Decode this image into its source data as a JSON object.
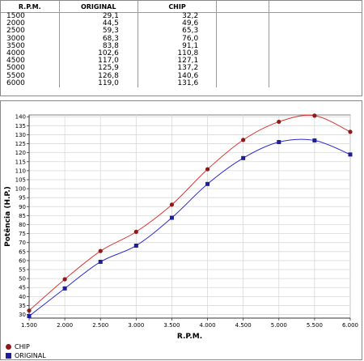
{
  "table": {
    "headers": [
      "R.P.M.",
      "ORIGINAL",
      "CHIP",
      "",
      ""
    ],
    "rows": [
      [
        "1500",
        "29,1",
        "32,2"
      ],
      [
        "2000",
        "44,5",
        "49,6"
      ],
      [
        "2500",
        "59,3",
        "65,3"
      ],
      [
        "3000",
        "68,3",
        "76,0"
      ],
      [
        "3500",
        "83,8",
        "91,1"
      ],
      [
        "4000",
        "102,6",
        "110,8"
      ],
      [
        "4500",
        "117,0",
        "127,1"
      ],
      [
        "5000",
        "125,9",
        "137,2"
      ],
      [
        "5500",
        "126,8",
        "140,6"
      ],
      [
        "6000",
        "119,0",
        "131,6"
      ]
    ]
  },
  "chart_data": {
    "type": "line",
    "xlabel": "R.P.M.",
    "ylabel": "Potência (H.P.)",
    "x": [
      1500,
      2000,
      2500,
      3000,
      3500,
      4000,
      4500,
      5000,
      5500,
      6000
    ],
    "x_ticks": [
      "1.500",
      "2.000",
      "2.500",
      "3.000",
      "3.500",
      "4.000",
      "4.500",
      "5.000",
      "5.500",
      "6.000"
    ],
    "xlim": [
      1500,
      6000
    ],
    "ylim": [
      28,
      141
    ],
    "y_ticks": [
      30,
      35,
      40,
      45,
      50,
      55,
      60,
      65,
      70,
      75,
      80,
      85,
      90,
      95,
      100,
      105,
      110,
      115,
      120,
      125,
      130,
      135,
      140
    ],
    "grid": true,
    "legend_position": "bottom-left",
    "series": [
      {
        "name": "CHIP",
        "values": [
          32.2,
          49.6,
          65.3,
          76.0,
          91.1,
          110.8,
          127.1,
          137.2,
          140.6,
          131.6
        ],
        "color": "#dd3333",
        "marker": "circle",
        "marker_color": "#8b1a1a"
      },
      {
        "name": "ORIGINAL",
        "values": [
          29.1,
          44.5,
          59.3,
          68.3,
          83.8,
          102.6,
          117.0,
          125.9,
          126.8,
          119.0
        ],
        "color": "#2a2ad0",
        "marker": "square",
        "marker_color": "#1f1f8f"
      }
    ]
  }
}
